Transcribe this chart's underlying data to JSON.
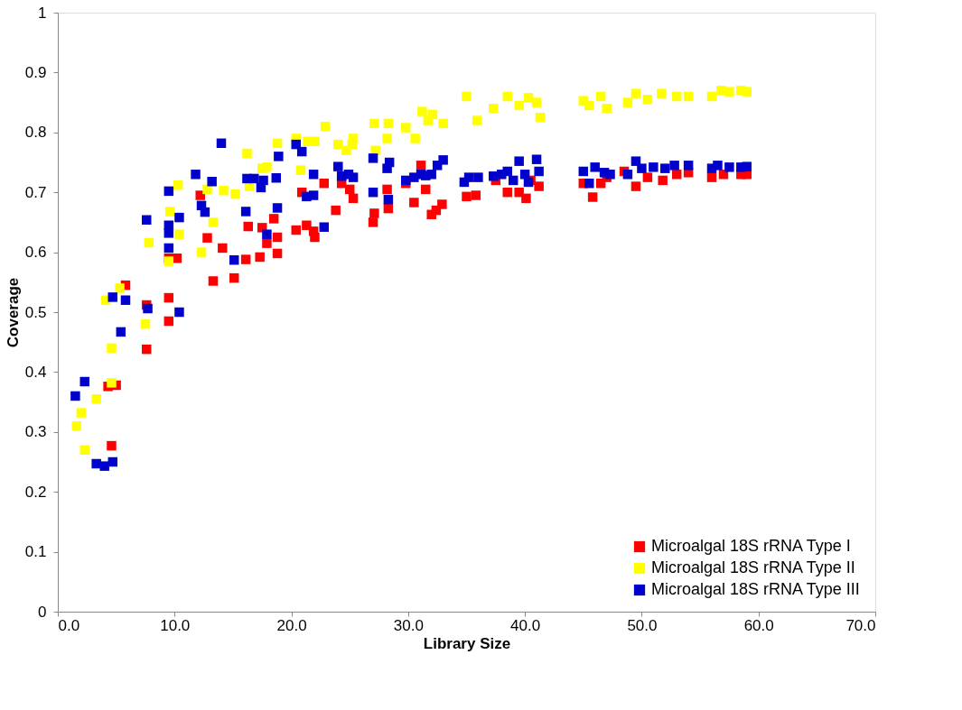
{
  "chart_data": {
    "type": "scatter",
    "xlabel": "Library Size",
    "ylabel": "Coverage",
    "marker": "square",
    "grid": false,
    "legend": "bottom right",
    "xlim": [
      0,
      70
    ],
    "ylim": [
      0,
      1
    ],
    "xticks": [
      {
        "value": 0,
        "label": "0.0"
      },
      {
        "value": 10,
        "label": "10.0"
      },
      {
        "value": 20,
        "label": "20.0"
      },
      {
        "value": 30,
        "label": "30.0"
      },
      {
        "value": 40,
        "label": "40.0"
      },
      {
        "value": 50,
        "label": "50.0"
      },
      {
        "value": 60,
        "label": "60.0"
      },
      {
        "value": 70,
        "label": "70.0"
      }
    ],
    "yticks": [
      0,
      0.1,
      0.2,
      0.3,
      0.4,
      0.5,
      0.6,
      0.7,
      0.8,
      0.9,
      1
    ],
    "series": [
      {
        "name": "Microalgal 18S rRNA Type I",
        "color": "#ff0000",
        "x": [
          4.3,
          5.0,
          4.6,
          5.8,
          7.6,
          7.6,
          9.5,
          9.5,
          9.5,
          10.2,
          12.2,
          12.8,
          13.3,
          14.1,
          15.1,
          16.1,
          16.3,
          17.3,
          17.5,
          17.9,
          18.5,
          18.8,
          18.8,
          20.4,
          20.9,
          21.3,
          22.0,
          21.9,
          22.8,
          23.8,
          24.3,
          25.0,
          25.3,
          27.0,
          27.1,
          28.2,
          28.3,
          29.8,
          30.5,
          31.1,
          31.5,
          32.0,
          32.4,
          32.9,
          35.0,
          35.8,
          37.5,
          38.5,
          39.5,
          40.1,
          40.5,
          41.2,
          45.0,
          45.8,
          46.5,
          47.0,
          48.5,
          49.5,
          50.5,
          51.8,
          53.0,
          54.0,
          56.0,
          57.0,
          58.5,
          59.0
        ],
        "values": [
          0.376,
          0.378,
          0.277,
          0.545,
          0.438,
          0.512,
          0.524,
          0.485,
          0.59,
          0.59,
          0.695,
          0.624,
          0.552,
          0.607,
          0.557,
          0.588,
          0.643,
          0.592,
          0.641,
          0.615,
          0.656,
          0.625,
          0.598,
          0.637,
          0.7,
          0.645,
          0.625,
          0.635,
          0.715,
          0.67,
          0.715,
          0.705,
          0.69,
          0.65,
          0.665,
          0.705,
          0.673,
          0.715,
          0.683,
          0.745,
          0.705,
          0.663,
          0.67,
          0.68,
          0.693,
          0.695,
          0.72,
          0.7,
          0.7,
          0.69,
          0.72,
          0.71,
          0.715,
          0.692,
          0.715,
          0.725,
          0.735,
          0.71,
          0.725,
          0.72,
          0.73,
          0.733,
          0.725,
          0.73,
          0.73,
          0.73
        ]
      },
      {
        "name": "Microalgal 18S rRNA Type II",
        "color": "#ffff00",
        "x": [
          1.6,
          2.0,
          2.3,
          3.3,
          4.1,
          4.6,
          4.6,
          5.3,
          7.5,
          7.8,
          9.6,
          9.5,
          10.3,
          10.4,
          12.3,
          12.8,
          13.3,
          14.2,
          15.2,
          16.2,
          16.4,
          17.5,
          17.9,
          18.8,
          20.4,
          20.8,
          21.4,
          22.0,
          22.9,
          24.0,
          24.7,
          25.2,
          25.3,
          27.1,
          27.2,
          28.2,
          28.3,
          29.8,
          30.6,
          31.2,
          31.7,
          32.1,
          33.0,
          35.0,
          35.9,
          37.3,
          38.5,
          39.5,
          40.3,
          41.0,
          41.3,
          45.0,
          45.5,
          46.5,
          47.0,
          48.8,
          49.5,
          50.5,
          51.7,
          53.0,
          54.0,
          56.0,
          56.8,
          57.5,
          58.5,
          59.0
        ],
        "values": [
          0.31,
          0.332,
          0.27,
          0.355,
          0.52,
          0.44,
          0.382,
          0.54,
          0.48,
          0.616,
          0.668,
          0.585,
          0.712,
          0.63,
          0.6,
          0.705,
          0.65,
          0.703,
          0.697,
          0.765,
          0.71,
          0.74,
          0.742,
          0.782,
          0.79,
          0.737,
          0.785,
          0.785,
          0.81,
          0.78,
          0.77,
          0.78,
          0.79,
          0.815,
          0.77,
          0.79,
          0.815,
          0.808,
          0.79,
          0.835,
          0.82,
          0.83,
          0.815,
          0.86,
          0.82,
          0.84,
          0.86,
          0.845,
          0.858,
          0.85,
          0.825,
          0.853,
          0.845,
          0.86,
          0.84,
          0.85,
          0.865,
          0.855,
          0.865,
          0.86,
          0.86,
          0.86,
          0.87,
          0.868,
          0.87,
          0.868
        ]
      },
      {
        "name": "Microalgal 18S rRNA Type III",
        "color": "#0000cc",
        "x": [
          1.5,
          2.3,
          3.3,
          4.0,
          4.7,
          4.7,
          5.4,
          5.8,
          7.6,
          7.7,
          9.5,
          9.5,
          9.5,
          9.5,
          10.4,
          10.4,
          11.8,
          12.3,
          12.6,
          13.2,
          14.0,
          15.1,
          16.1,
          16.2,
          16.8,
          17.4,
          17.6,
          17.9,
          18.7,
          18.8,
          18.9,
          20.4,
          20.9,
          21.3,
          21.9,
          21.9,
          22.8,
          24.0,
          24.3,
          24.9,
          25.3,
          27.0,
          27.0,
          28.2,
          28.3,
          28.4,
          29.8,
          30.5,
          31.1,
          31.5,
          32.0,
          32.5,
          33.0,
          34.8,
          35.2,
          36.0,
          37.3,
          38.0,
          38.5,
          39.0,
          39.5,
          40.0,
          40.3,
          41.0,
          41.2,
          45.0,
          45.5,
          46.0,
          46.8,
          47.3,
          48.8,
          49.5,
          50.0,
          51.0,
          52.0,
          52.8,
          54.0,
          56.0,
          56.5,
          57.5,
          58.5,
          59.0
        ],
        "values": [
          0.36,
          0.384,
          0.247,
          0.243,
          0.25,
          0.525,
          0.467,
          0.52,
          0.654,
          0.506,
          0.702,
          0.645,
          0.632,
          0.607,
          0.658,
          0.5,
          0.73,
          0.678,
          0.667,
          0.718,
          0.782,
          0.587,
          0.668,
          0.723,
          0.723,
          0.708,
          0.72,
          0.63,
          0.724,
          0.674,
          0.76,
          0.78,
          0.768,
          0.693,
          0.695,
          0.73,
          0.642,
          0.743,
          0.727,
          0.73,
          0.725,
          0.757,
          0.7,
          0.74,
          0.688,
          0.75,
          0.72,
          0.725,
          0.73,
          0.728,
          0.73,
          0.745,
          0.754,
          0.717,
          0.725,
          0.725,
          0.727,
          0.73,
          0.735,
          0.72,
          0.752,
          0.73,
          0.717,
          0.755,
          0.735,
          0.735,
          0.715,
          0.742,
          0.733,
          0.73,
          0.73,
          0.752,
          0.74,
          0.742,
          0.74,
          0.745,
          0.745,
          0.74,
          0.745,
          0.742,
          0.742,
          0.743
        ]
      }
    ]
  }
}
